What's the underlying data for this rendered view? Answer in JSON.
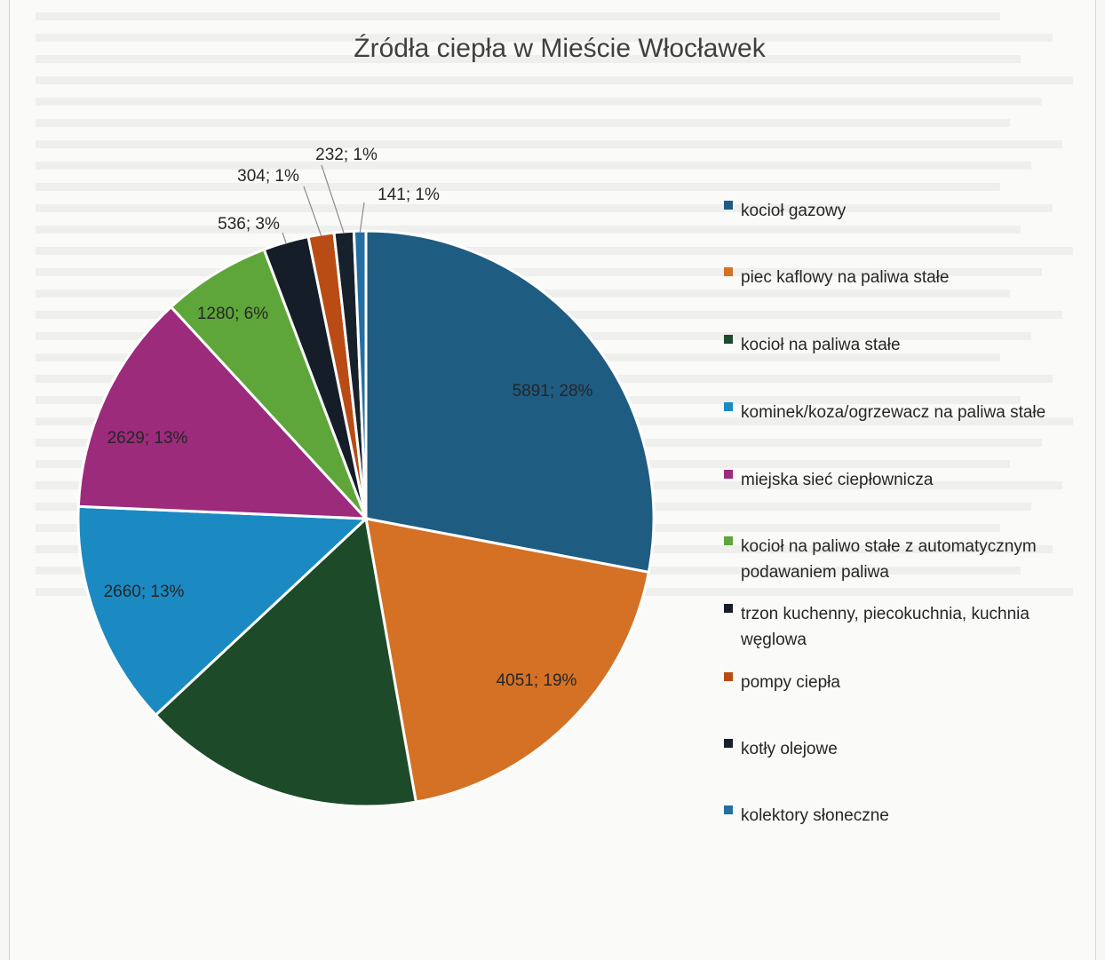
{
  "chart_data": {
    "type": "pie",
    "title": "Źródła ciepła w Mieście Włocławek",
    "legend_position": "right",
    "slices": [
      {
        "label": "kocioł gazowy",
        "value": 5891,
        "percent_label": "5891; 28%",
        "color": "#1f5c82"
      },
      {
        "label": "piec kaflowy na paliwa stałe",
        "value": 4051,
        "percent_label": "4051; 19%",
        "color": "#d47125"
      },
      {
        "label": "kocioł na paliwa stałe",
        "value": 3331,
        "percent_label": "",
        "color": "#1d4a28"
      },
      {
        "label": "kominek/koza/ogrzewacz na paliwa stałe",
        "value": 2660,
        "percent_label": "2660; 13%",
        "color": "#1b8ac2"
      },
      {
        "label": "miejska sieć ciepłownicza",
        "value": 2629,
        "percent_label": "2629; 13%",
        "color": "#9c2b7c"
      },
      {
        "label": "kocioł na paliwo stałe z automatycznym podawaniem paliwa",
        "value": 1280,
        "percent_label": "1280; 6%",
        "color": "#5ea63a"
      },
      {
        "label": "trzon kuchenny, piecokuchnia, kuchnia węglowa",
        "value": 536,
        "percent_label": "536; 3%",
        "color": "#141d28"
      },
      {
        "label": "pompy ciepła",
        "value": 304,
        "percent_label": "304; 1%",
        "color": "#b94b14"
      },
      {
        "label": "kotły olejowe",
        "value": 232,
        "percent_label": "232; 1%",
        "color": "#17212b"
      },
      {
        "label": "kolektory słoneczne",
        "value": 141,
        "percent_label": "141; 1%",
        "color": "#236fa3"
      }
    ]
  },
  "legend": {
    "items": [
      {
        "lines": [
          "kocioł gazowy"
        ]
      },
      {
        "lines": [
          "piec kaflowy na paliwa stałe"
        ]
      },
      {
        "lines": [
          "kocioł na paliwa stałe"
        ]
      },
      {
        "lines": [
          "kominek/koza/ogrzewacz na paliwa stałe"
        ]
      },
      {
        "lines": [
          "miejska sieć ciepłownicza"
        ]
      },
      {
        "lines": [
          "kocioł na paliwo stałe z automatycznym",
          "podawaniem paliwa"
        ]
      },
      {
        "lines": [
          "trzon kuchenny, piecokuchnia, kuchnia",
          "węglowa"
        ]
      },
      {
        "lines": [
          "pompy ciepła"
        ]
      },
      {
        "lines": [
          "kotły olejowe"
        ]
      },
      {
        "lines": [
          "kolektory słoneczne"
        ]
      }
    ]
  }
}
